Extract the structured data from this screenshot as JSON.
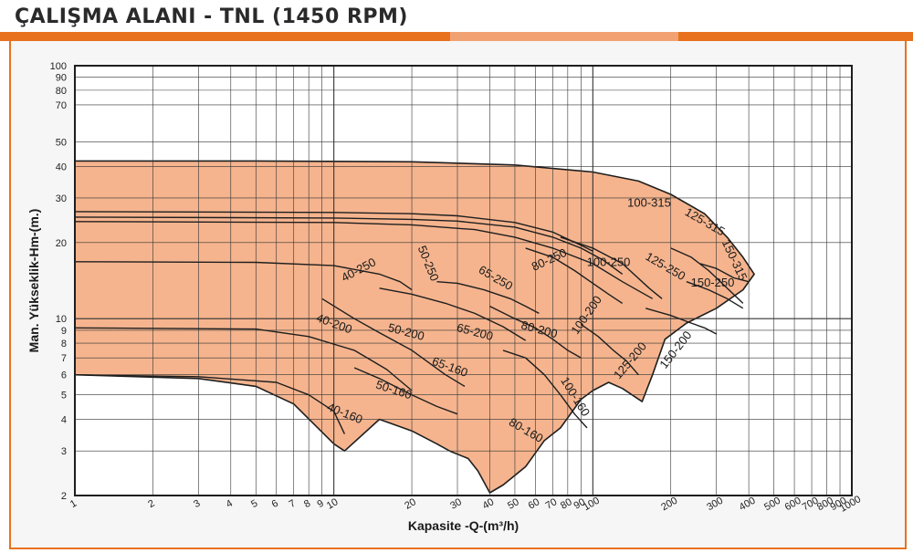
{
  "title": "ÇALIŞMA ALANI - TNL (1450 RPM)",
  "colors": {
    "band": [
      "#e8711e",
      "#f2a272",
      "#e8711e"
    ],
    "region_fill": "#f5b48e",
    "curve_stroke": "#1e1e1e",
    "grid": "#333333",
    "plot_bg": "#ffffff"
  },
  "chart_data": {
    "type": "area",
    "xlabel": "Kapasite -Q-(m³/h)",
    "ylabel": "Man. Yükseklik-Hm-(m.)",
    "x_scale": "log",
    "y_scale": "log",
    "xlim": [
      1,
      1000
    ],
    "ylim": [
      2,
      100
    ],
    "grid": true,
    "x_ticks": [
      1,
      2,
      3,
      4,
      5,
      6,
      7,
      8,
      9,
      10,
      20,
      30,
      40,
      50,
      60,
      70,
      80,
      90,
      100,
      200,
      300,
      400,
      500,
      600,
      700,
      800,
      900,
      1000
    ],
    "y_ticks": [
      2,
      3,
      4,
      5,
      6,
      7,
      8,
      9,
      10,
      20,
      30,
      40,
      50,
      70,
      80,
      90,
      100
    ],
    "envelope": [
      [
        1,
        42
      ],
      [
        5,
        42
      ],
      [
        20,
        41.7
      ],
      [
        50,
        40.5
      ],
      [
        100,
        38
      ],
      [
        150,
        35
      ],
      [
        200,
        31
      ],
      [
        270,
        26
      ],
      [
        330,
        21
      ],
      [
        380,
        17.5
      ],
      [
        420,
        15
      ],
      [
        380,
        13
      ],
      [
        300,
        11
      ],
      [
        230,
        9.6
      ],
      [
        190,
        8.3
      ],
      [
        170,
        6
      ],
      [
        155,
        4.7
      ],
      [
        130,
        5.3
      ],
      [
        115,
        5.6
      ],
      [
        100,
        5.2
      ],
      [
        90,
        4.8
      ],
      [
        75,
        3.7
      ],
      [
        65,
        3.3
      ],
      [
        55,
        2.6
      ],
      [
        50,
        2.4
      ],
      [
        45,
        2.2
      ],
      [
        40,
        2.05
      ],
      [
        36,
        2.5
      ],
      [
        33,
        2.8
      ],
      [
        28,
        3.0
      ],
      [
        25,
        3.2
      ],
      [
        20,
        3.6
      ],
      [
        15,
        4.0
      ],
      [
        11,
        3.0
      ],
      [
        10,
        3.2
      ],
      [
        7,
        4.6
      ],
      [
        5,
        5.4
      ],
      [
        3,
        5.8
      ],
      [
        1,
        6.0
      ]
    ],
    "curves": [
      [
        [
          1,
          26.5
        ],
        [
          10,
          26.3
        ],
        [
          20,
          26
        ],
        [
          30,
          25.5
        ],
        [
          50,
          24
        ],
        [
          70,
          22
        ],
        [
          90,
          19.5
        ],
        [
          100,
          18.5
        ]
      ],
      [
        [
          1,
          25.2
        ],
        [
          10,
          25
        ],
        [
          20,
          24.7
        ],
        [
          30,
          24.3
        ],
        [
          50,
          23
        ],
        [
          70,
          21
        ],
        [
          90,
          19
        ],
        [
          110,
          17
        ],
        [
          130,
          15
        ]
      ],
      [
        [
          1,
          24.2
        ],
        [
          10,
          24
        ],
        [
          20,
          23.5
        ],
        [
          35,
          22.5
        ],
        [
          50,
          21
        ],
        [
          70,
          19
        ],
        [
          100,
          16.5
        ],
        [
          130,
          14
        ],
        [
          170,
          12
        ]
      ],
      [
        [
          1,
          16.8
        ],
        [
          5,
          16.7
        ],
        [
          10,
          16.2
        ],
        [
          15,
          15
        ],
        [
          18,
          14
        ],
        [
          20,
          13
        ]
      ],
      [
        [
          1,
          9.2
        ],
        [
          5,
          9.1
        ],
        [
          8,
          8.5
        ],
        [
          12,
          7.5
        ],
        [
          16,
          6.3
        ],
        [
          20,
          5.2
        ]
      ],
      [
        [
          1,
          6.0
        ],
        [
          3,
          5.9
        ],
        [
          6,
          5.6
        ],
        [
          8,
          5.0
        ],
        [
          10,
          4.3
        ],
        [
          11,
          3.5
        ]
      ],
      [
        [
          9,
          12
        ],
        [
          12,
          10
        ],
        [
          15,
          8.8
        ],
        [
          20,
          7.5
        ],
        [
          27,
          6.0
        ],
        [
          32,
          5.4
        ]
      ],
      [
        [
          12,
          6.4
        ],
        [
          15,
          5.8
        ],
        [
          20,
          5.0
        ],
        [
          25,
          4.5
        ],
        [
          30,
          4.2
        ]
      ],
      [
        [
          15,
          13.2
        ],
        [
          20,
          12.5
        ],
        [
          27,
          11.5
        ],
        [
          35,
          10.5
        ],
        [
          45,
          9.3
        ],
        [
          55,
          8.2
        ]
      ],
      [
        [
          25,
          14
        ],
        [
          30,
          13.8
        ],
        [
          38,
          13
        ],
        [
          48,
          12
        ],
        [
          55,
          11.2
        ],
        [
          62,
          10.5
        ]
      ],
      [
        [
          40,
          11.2
        ],
        [
          50,
          10
        ],
        [
          60,
          9.2
        ],
        [
          70,
          8.3
        ],
        [
          80,
          7.5
        ],
        [
          90,
          7
        ]
      ],
      [
        [
          45,
          7.5
        ],
        [
          55,
          7.0
        ],
        [
          65,
          6.0
        ],
        [
          75,
          5.0
        ],
        [
          85,
          4.2
        ],
        [
          95,
          3.7
        ]
      ],
      [
        [
          55,
          19
        ],
        [
          70,
          17.5
        ],
        [
          85,
          15.5
        ],
        [
          100,
          13.8
        ],
        [
          115,
          12.5
        ],
        [
          130,
          11.5
        ]
      ],
      [
        [
          75,
          21
        ],
        [
          100,
          19
        ],
        [
          130,
          16.5
        ],
        [
          165,
          13.2
        ],
        [
          185,
          12
        ]
      ],
      [
        [
          90,
          9.5
        ],
        [
          105,
          8.5
        ],
        [
          120,
          7.5
        ],
        [
          135,
          6.8
        ],
        [
          150,
          6.0
        ]
      ],
      [
        [
          160,
          11
        ],
        [
          200,
          10.3
        ],
        [
          240,
          9.6
        ],
        [
          270,
          9.2
        ],
        [
          300,
          8.7
        ]
      ],
      [
        [
          200,
          19
        ],
        [
          240,
          17.5
        ],
        [
          280,
          15.5
        ],
        [
          330,
          13.2
        ],
        [
          380,
          11.5
        ]
      ],
      [
        [
          230,
          14
        ],
        [
          280,
          13
        ],
        [
          330,
          12
        ],
        [
          380,
          11
        ]
      ],
      [
        [
          260,
          16.5
        ],
        [
          300,
          15.8
        ],
        [
          350,
          14.5
        ],
        [
          400,
          14
        ]
      ]
    ],
    "region_labels": [
      {
        "text": "100-315",
        "x": 165,
        "y": 28.5,
        "angle": 0
      },
      {
        "text": "125-315",
        "x": 270,
        "y": 24,
        "angle": 30
      },
      {
        "text": "150-315",
        "x": 350,
        "y": 17,
        "angle": 65
      },
      {
        "text": "150-250",
        "x": 290,
        "y": 13.8,
        "angle": 0
      },
      {
        "text": "125-250",
        "x": 190,
        "y": 16,
        "angle": 30
      },
      {
        "text": "100-250",
        "x": 115,
        "y": 16.6,
        "angle": 0
      },
      {
        "text": "80-250",
        "x": 68,
        "y": 17,
        "angle": -25
      },
      {
        "text": "65-250",
        "x": 42,
        "y": 14.4,
        "angle": 30
      },
      {
        "text": "50-250",
        "x": 23,
        "y": 16.5,
        "angle": 68
      },
      {
        "text": "40-250",
        "x": 12.5,
        "y": 15.5,
        "angle": -28
      },
      {
        "text": "40-200",
        "x": 10,
        "y": 9.5,
        "angle": 20
      },
      {
        "text": "50-200",
        "x": 19,
        "y": 8.8,
        "angle": 15
      },
      {
        "text": "65-200",
        "x": 35,
        "y": 8.8,
        "angle": 15
      },
      {
        "text": "80-200",
        "x": 62,
        "y": 9.0,
        "angle": 15
      },
      {
        "text": "100-200",
        "x": 95,
        "y": 10.3,
        "angle": -55
      },
      {
        "text": "125-200",
        "x": 140,
        "y": 6.8,
        "angle": -50
      },
      {
        "text": "150-200",
        "x": 210,
        "y": 7.5,
        "angle": -52
      },
      {
        "text": "65-160",
        "x": 28,
        "y": 6.4,
        "angle": 20
      },
      {
        "text": "50-160",
        "x": 17,
        "y": 5.2,
        "angle": 18
      },
      {
        "text": "40-160",
        "x": 11,
        "y": 4.2,
        "angle": 22
      },
      {
        "text": "80-160",
        "x": 55,
        "y": 3.6,
        "angle": 30
      },
      {
        "text": "100-160",
        "x": 85,
        "y": 4.9,
        "angle": 58
      }
    ]
  }
}
